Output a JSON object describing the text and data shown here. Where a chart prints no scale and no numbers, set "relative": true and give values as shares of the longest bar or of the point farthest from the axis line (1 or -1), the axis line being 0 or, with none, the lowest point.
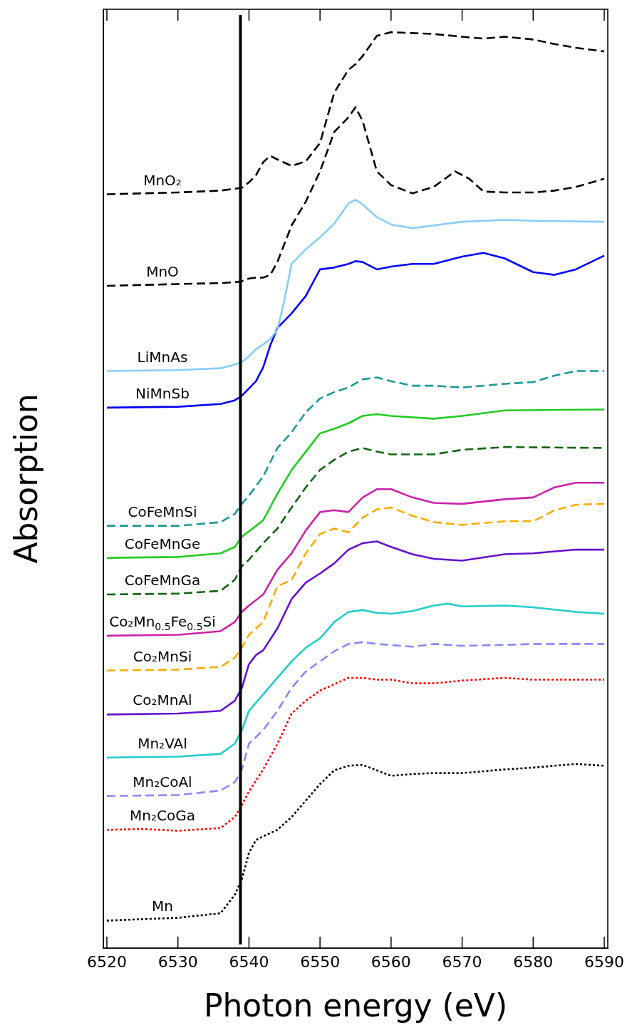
{
  "chart_data": {
    "type": "line",
    "relative": true,
    "xlabel": "Photon energy (eV)",
    "ylabel": "Absorption",
    "xlim": [
      6519.5,
      6590.5
    ],
    "xticks": [
      6520,
      6530,
      6540,
      6550,
      6560,
      6570,
      6580,
      6590
    ],
    "grid": false,
    "legend": false,
    "marker": "none",
    "ref_lines": [
      {
        "axis": "x",
        "value": 6538.8,
        "color": "#000000"
      }
    ],
    "series": [
      {
        "name": "MnO₂",
        "color": "#000000",
        "line_style": "dashed",
        "x": [
          6520,
          6530,
          6536,
          6538,
          6539,
          6540,
          6541,
          6542,
          6543,
          6544,
          6546,
          6548,
          6550,
          6552,
          6554,
          6555,
          6556,
          6558,
          6560,
          6563,
          6566,
          6570,
          6573,
          6576,
          6580,
          6583,
          6586,
          6590
        ],
        "values": [
          0.823,
          0.825,
          0.827,
          0.829,
          0.83,
          0.836,
          0.844,
          0.858,
          0.865,
          0.861,
          0.854,
          0.859,
          0.879,
          0.934,
          0.959,
          0.965,
          0.974,
          0.996,
          1,
          0.999,
          0.998,
          0.995,
          0.993,
          0.995,
          0.992,
          0.987,
          0.983,
          0.979
        ]
      },
      {
        "name": "MnO",
        "color": "#000000",
        "line_style": "dashed",
        "x": [
          6520,
          6530,
          6536,
          6538,
          6539,
          6540,
          6541,
          6542,
          6543,
          6544,
          6546,
          6548,
          6550,
          6552,
          6554,
          6555,
          6556,
          6558,
          6560,
          6563,
          6566,
          6569,
          6571,
          6573,
          6576,
          6580,
          6583,
          6586,
          6590
        ],
        "values": [
          0.723,
          0.725,
          0.726,
          0.727,
          0.728,
          0.731,
          0.732,
          0.732,
          0.735,
          0.749,
          0.789,
          0.815,
          0.848,
          0.891,
          0.907,
          0.918,
          0.903,
          0.848,
          0.833,
          0.824,
          0.831,
          0.848,
          0.84,
          0.826,
          0.825,
          0.825,
          0.827,
          0.831,
          0.84
        ]
      },
      {
        "name": "LiMnAs",
        "color": "#87cefa",
        "line_style": "solid",
        "x": [
          6520,
          6530,
          6536,
          6538,
          6539,
          6540,
          6541,
          6542,
          6543,
          6544,
          6545,
          6546,
          6548,
          6550,
          6552,
          6554,
          6555,
          6556,
          6558,
          6560,
          6563,
          6566,
          6570,
          6576,
          6580,
          6590
        ],
        "values": [
          0.63,
          0.631,
          0.633,
          0.637,
          0.64,
          0.646,
          0.654,
          0.659,
          0.665,
          0.675,
          0.708,
          0.747,
          0.763,
          0.776,
          0.791,
          0.813,
          0.817,
          0.812,
          0.798,
          0.79,
          0.786,
          0.789,
          0.793,
          0.795,
          0.794,
          0.793
        ]
      },
      {
        "name": "NiMnSb",
        "color": "#0000ff",
        "line_style": "solid",
        "x": [
          6520,
          6530,
          6536,
          6538,
          6539,
          6540,
          6541,
          6542,
          6543,
          6544,
          6546,
          6548,
          6550,
          6552,
          6554,
          6555,
          6556,
          6558,
          6560,
          6563,
          6566,
          6570,
          6573,
          6576,
          6580,
          6583,
          6586,
          6590
        ],
        "values": [
          0.59,
          0.591,
          0.594,
          0.598,
          0.603,
          0.611,
          0.619,
          0.634,
          0.658,
          0.677,
          0.693,
          0.712,
          0.741,
          0.743,
          0.747,
          0.75,
          0.749,
          0.741,
          0.744,
          0.747,
          0.747,
          0.755,
          0.759,
          0.753,
          0.738,
          0.735,
          0.741,
          0.756
        ]
      },
      {
        "name": "CoFeMnSi",
        "color": "#1a9999",
        "line_style": "dashed",
        "x": [
          6520,
          6530,
          6536,
          6538,
          6539,
          6540,
          6542,
          6544,
          6546,
          6548,
          6550,
          6552,
          6554,
          6556,
          6558,
          6560,
          6563,
          6566,
          6570,
          6576,
          6580,
          6583,
          6586,
          6590
        ],
        "values": [
          0.461,
          0.461,
          0.465,
          0.474,
          0.485,
          0.494,
          0.515,
          0.546,
          0.563,
          0.585,
          0.6,
          0.607,
          0.612,
          0.621,
          0.623,
          0.619,
          0.614,
          0.614,
          0.612,
          0.616,
          0.618,
          0.625,
          0.63,
          0.63
        ]
      },
      {
        "name": "CoFeMnGe",
        "color": "#22cc22",
        "line_style": "solid",
        "x": [
          6520,
          6530,
          6536,
          6538,
          6539,
          6540,
          6542,
          6544,
          6546,
          6548,
          6550,
          6552,
          6554,
          6556,
          6558,
          6560,
          6566,
          6570,
          6576,
          6590
        ],
        "values": [
          0.426,
          0.427,
          0.431,
          0.438,
          0.449,
          0.455,
          0.467,
          0.496,
          0.522,
          0.542,
          0.562,
          0.567,
          0.573,
          0.581,
          0.583,
          0.581,
          0.578,
          0.581,
          0.587,
          0.588
        ]
      },
      {
        "name": "CoFeMnGa",
        "color": "#116611",
        "line_style": "dashed",
        "x": [
          6520,
          6530,
          6536,
          6538,
          6539,
          6540,
          6542,
          6544,
          6546,
          6548,
          6550,
          6552,
          6554,
          6556,
          6558,
          6560,
          6566,
          6570,
          6576,
          6590
        ],
        "values": [
          0.386,
          0.387,
          0.39,
          0.402,
          0.417,
          0.424,
          0.442,
          0.458,
          0.481,
          0.503,
          0.522,
          0.533,
          0.542,
          0.546,
          0.542,
          0.539,
          0.539,
          0.544,
          0.547,
          0.546
        ]
      },
      {
        "name": "Co₂Mn$_{0.5}$Fe$_{0.5}$Si",
        "color": "#cc22aa",
        "line_style": "solid",
        "x": [
          6520,
          6530,
          6536,
          6538,
          6539,
          6540,
          6542,
          6544,
          6546,
          6548,
          6550,
          6552,
          6554,
          6556,
          6558,
          6560,
          6563,
          6566,
          6570,
          6576,
          6580,
          6583,
          6586,
          6590
        ],
        "values": [
          0.341,
          0.342,
          0.346,
          0.356,
          0.367,
          0.374,
          0.386,
          0.413,
          0.431,
          0.456,
          0.476,
          0.478,
          0.476,
          0.492,
          0.501,
          0.501,
          0.492,
          0.486,
          0.485,
          0.49,
          0.492,
          0.503,
          0.508,
          0.508
        ]
      },
      {
        "name": "Co₂MnSi",
        "color": "#ffaa00",
        "line_style": "dashed",
        "x": [
          6520,
          6530,
          6536,
          6538,
          6539,
          6540,
          6542,
          6544,
          6546,
          6548,
          6550,
          6552,
          6554,
          6556,
          6558,
          6560,
          6563,
          6566,
          6570,
          6576,
          6580,
          6583,
          6586,
          6590
        ],
        "values": [
          0.303,
          0.304,
          0.307,
          0.317,
          0.328,
          0.342,
          0.356,
          0.395,
          0.402,
          0.431,
          0.452,
          0.458,
          0.454,
          0.47,
          0.479,
          0.481,
          0.472,
          0.465,
          0.462,
          0.466,
          0.466,
          0.478,
          0.484,
          0.485
        ]
      },
      {
        "name": "Co₂MnAl",
        "color": "#6611cc",
        "line_style": "solid",
        "x": [
          6520,
          6530,
          6536,
          6538,
          6539,
          6540,
          6541,
          6542,
          6544,
          6546,
          6548,
          6550,
          6552,
          6554,
          6556,
          6558,
          6560,
          6563,
          6566,
          6570,
          6576,
          6580,
          6586,
          6590
        ],
        "values": [
          0.255,
          0.256,
          0.259,
          0.27,
          0.284,
          0.31,
          0.32,
          0.325,
          0.349,
          0.381,
          0.399,
          0.409,
          0.42,
          0.435,
          0.442,
          0.444,
          0.438,
          0.43,
          0.425,
          0.423,
          0.43,
          0.431,
          0.435,
          0.435
        ]
      },
      {
        "name": "Mn₂VAl",
        "color": "#22cccc",
        "line_style": "solid",
        "x": [
          6520,
          6530,
          6536,
          6538,
          6539,
          6540,
          6542,
          6544,
          6546,
          6548,
          6550,
          6552,
          6554,
          6556,
          6558,
          6560,
          6563,
          6566,
          6568,
          6570,
          6576,
          6580,
          6586,
          6590
        ],
        "values": [
          0.208,
          0.209,
          0.212,
          0.223,
          0.238,
          0.259,
          0.277,
          0.295,
          0.313,
          0.328,
          0.338,
          0.356,
          0.367,
          0.369,
          0.366,
          0.365,
          0.368,
          0.374,
          0.376,
          0.373,
          0.374,
          0.372,
          0.367,
          0.365
        ]
      },
      {
        "name": "Mn₂CoAl",
        "color": "#8888ff",
        "line_style": "dashed",
        "x": [
          6520,
          6530,
          6536,
          6538,
          6539,
          6540,
          6542,
          6544,
          6546,
          6548,
          6550,
          6552,
          6554,
          6556,
          6558,
          6563,
          6566,
          6570,
          6576,
          6580,
          6586,
          6590
        ],
        "values": [
          0.166,
          0.167,
          0.172,
          0.181,
          0.195,
          0.223,
          0.238,
          0.259,
          0.284,
          0.302,
          0.313,
          0.324,
          0.332,
          0.334,
          0.332,
          0.329,
          0.332,
          0.33,
          0.331,
          0.332,
          0.332,
          0.332
        ]
      },
      {
        "name": "Mn₂CoGa",
        "color": "#ff0000",
        "line_style": "dotted",
        "x": [
          6520,
          6525,
          6530,
          6536,
          6538,
          6539,
          6540,
          6542,
          6544,
          6546,
          6548,
          6550,
          6552,
          6554,
          6556,
          6558,
          6560,
          6563,
          6566,
          6570,
          6576,
          6580,
          6586,
          6590
        ],
        "values": [
          0.129,
          0.13,
          0.128,
          0.131,
          0.143,
          0.156,
          0.171,
          0.195,
          0.223,
          0.256,
          0.27,
          0.281,
          0.288,
          0.295,
          0.295,
          0.293,
          0.293,
          0.289,
          0.289,
          0.292,
          0.295,
          0.293,
          0.293,
          0.293
        ]
      },
      {
        "name": "Mn",
        "color": "#000000",
        "line_style": "dotted",
        "x": [
          6520,
          6530,
          6536,
          6538,
          6539,
          6540,
          6541,
          6542,
          6544,
          6546,
          6548,
          6550,
          6552,
          6554,
          6556,
          6558,
          6560,
          6563,
          6566,
          6570,
          6576,
          6580,
          6586,
          6590
        ],
        "values": [
          0.03,
          0.033,
          0.038,
          0.058,
          0.075,
          0.104,
          0.118,
          0.122,
          0.129,
          0.143,
          0.161,
          0.179,
          0.194,
          0.199,
          0.2,
          0.194,
          0.188,
          0.19,
          0.191,
          0.191,
          0.195,
          0.197,
          0.201,
          0.199
        ]
      }
    ]
  }
}
